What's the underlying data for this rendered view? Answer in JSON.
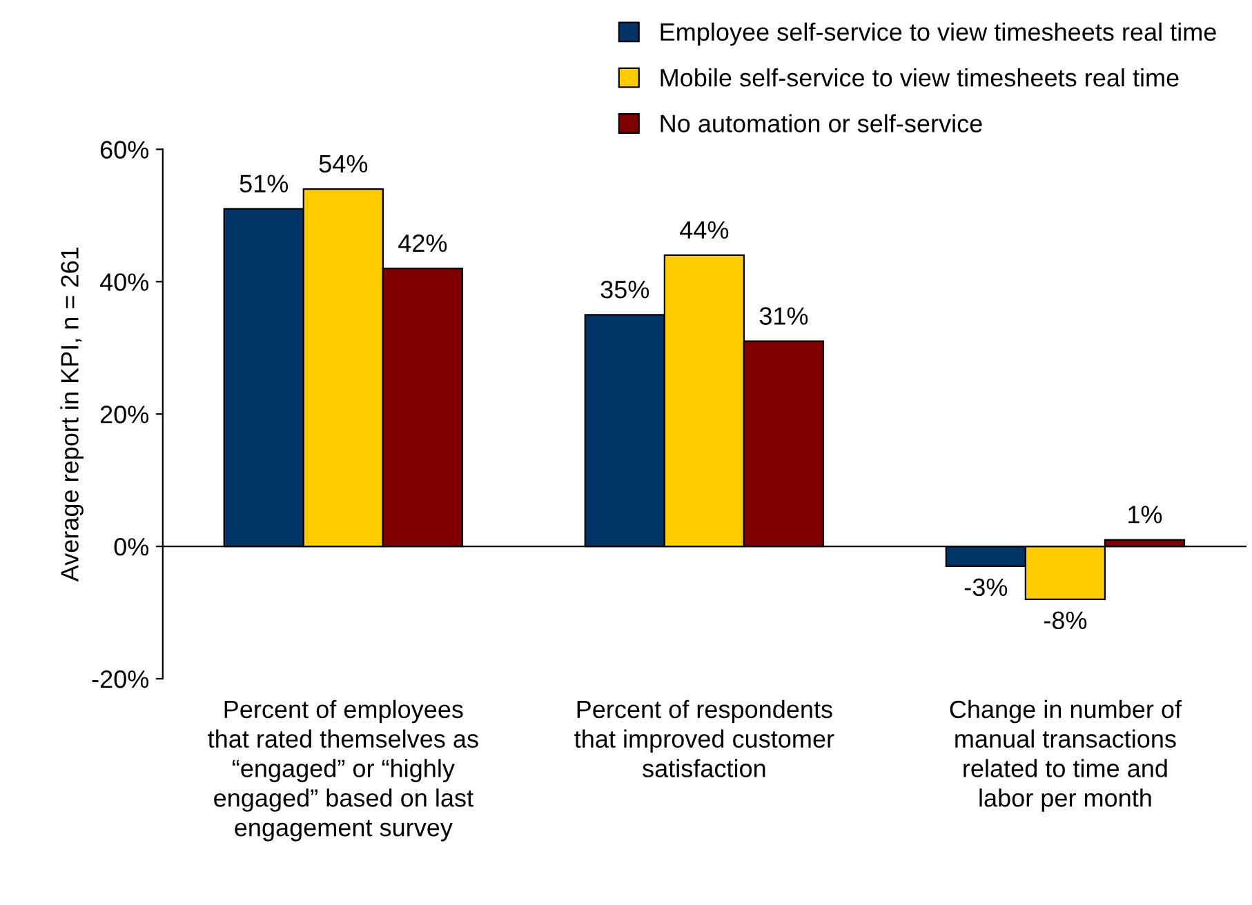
{
  "chart_data": {
    "type": "bar",
    "ylabel": "Average report in KPI, n = 261",
    "categories": [
      "Percent of employees that rated themselves as “engaged” or “highly engaged” based on last engagement survey",
      "Percent of respondents that improved customer satisfaction",
      "Change in number of manual transactions related to time and labor per month"
    ],
    "series": [
      {
        "name": "Employee self-service to view timesheets real time",
        "color": "#003366",
        "values": [
          51,
          35,
          -3
        ],
        "value_labels": [
          "51%",
          "35%",
          "-3%"
        ]
      },
      {
        "name": "Mobile self-service to view timesheets real time",
        "color": "#ffcc00",
        "values": [
          54,
          44,
          -8
        ],
        "value_labels": [
          "54%",
          "44%",
          "-8%"
        ]
      },
      {
        "name": "No automation or self-service",
        "color": "#800000",
        "values": [
          42,
          31,
          1
        ],
        "value_labels": [
          "42%",
          "31%",
          "1%"
        ]
      }
    ],
    "ylim": [
      -20,
      60
    ],
    "yticks": [
      {
        "value": -20,
        "label": "-20%"
      },
      {
        "value": 0,
        "label": "0%"
      },
      {
        "value": 20,
        "label": "20%"
      },
      {
        "value": 40,
        "label": "40%"
      },
      {
        "value": 60,
        "label": "60%"
      }
    ],
    "legend": "top right"
  }
}
